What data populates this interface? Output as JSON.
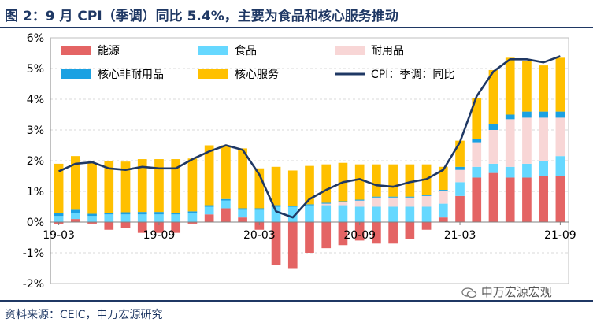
{
  "header": {
    "title": "图 2：9 月 CPI（季调）同比 5.4%，主要为食品和核心服务推动"
  },
  "footer": {
    "source": "资料来源：CEIC，申万宏源研究",
    "watermark": "申万宏源宏观"
  },
  "chart_data": {
    "type": "bar",
    "stacked": true,
    "title": "图 2：9 月 CPI（季调）同比 5.4%，主要为食品和核心服务推动",
    "ylim": [
      -2,
      6
    ],
    "yticks": [
      "-2%",
      "-1%",
      "0%",
      "1%",
      "2%",
      "3%",
      "4%",
      "5%",
      "6%"
    ],
    "ytick_values": [
      -2,
      -1,
      0,
      1,
      2,
      3,
      4,
      5,
      6
    ],
    "xtick_labels": [
      {
        "label": "19-03",
        "index": 0
      },
      {
        "label": "19-09",
        "index": 6
      },
      {
        "label": "20-03",
        "index": 12
      },
      {
        "label": "20-09",
        "index": 18
      },
      {
        "label": "21-03",
        "index": 24
      },
      {
        "label": "21-09",
        "index": 30
      }
    ],
    "categories": [
      "19-03",
      "19-04",
      "19-05",
      "19-06",
      "19-07",
      "19-08",
      "19-09",
      "19-10",
      "19-11",
      "19-12",
      "20-01",
      "20-02",
      "20-03",
      "20-04",
      "20-05",
      "20-06",
      "20-07",
      "20-08",
      "20-09",
      "20-10",
      "20-11",
      "20-12",
      "21-01",
      "21-02",
      "21-03",
      "21-04",
      "21-05",
      "21-06",
      "21-07",
      "21-08",
      "21-09"
    ],
    "series": [
      {
        "name": "能源",
        "color": "#e46464",
        "values": [
          -0.05,
          0.1,
          -0.05,
          -0.25,
          -0.2,
          -0.35,
          -0.35,
          -0.35,
          -0.05,
          0.25,
          0.45,
          0.15,
          -0.25,
          -1.4,
          -1.5,
          -1.0,
          -0.85,
          -0.75,
          -0.6,
          -0.7,
          -0.7,
          -0.55,
          -0.25,
          0.15,
          0.85,
          1.45,
          1.6,
          1.45,
          1.45,
          1.5,
          1.5
        ]
      },
      {
        "name": "食品",
        "color": "#66d8ff",
        "values": [
          0.2,
          0.2,
          0.2,
          0.25,
          0.25,
          0.25,
          0.25,
          0.25,
          0.3,
          0.25,
          0.25,
          0.25,
          0.4,
          0.5,
          0.5,
          0.55,
          0.55,
          0.55,
          0.5,
          0.5,
          0.5,
          0.5,
          0.5,
          0.45,
          0.45,
          0.35,
          0.3,
          0.35,
          0.45,
          0.5,
          0.65
        ]
      },
      {
        "name": "耐用品",
        "color": "#f8d6d6",
        "values": [
          0,
          0,
          0,
          0,
          0,
          0,
          0,
          0,
          0,
          0,
          0,
          0,
          0,
          0,
          0,
          0,
          0.05,
          0.1,
          0.2,
          0.3,
          0.3,
          0.3,
          0.35,
          0.4,
          0.4,
          0.8,
          1.1,
          1.55,
          1.5,
          1.4,
          1.25
        ]
      },
      {
        "name": "核心非耐用品",
        "color": "#1ba1e2",
        "values": [
          0.1,
          0.1,
          0.07,
          0.05,
          0.07,
          0.08,
          0.08,
          0.05,
          0.05,
          0.05,
          0.05,
          0.05,
          0.05,
          0.05,
          0.03,
          0.03,
          0.03,
          0.03,
          0.03,
          0.03,
          0.03,
          0.03,
          0.03,
          0.05,
          0.1,
          0.1,
          0.2,
          0.15,
          0.2,
          0.2,
          0.2
        ]
      },
      {
        "name": "核心服务",
        "color": "#ffc000",
        "values": [
          1.6,
          1.75,
          1.65,
          1.7,
          1.65,
          1.72,
          1.72,
          1.75,
          1.72,
          1.95,
          1.75,
          1.95,
          1.3,
          1.25,
          1.15,
          1.25,
          1.25,
          1.25,
          1.15,
          1.05,
          1.05,
          1.05,
          1.0,
          0.75,
          0.85,
          1.35,
          1.75,
          1.85,
          1.65,
          1.5,
          1.75
        ]
      }
    ],
    "line": {
      "name": "CPI：季调：同比",
      "color": "#1f3864",
      "values": [
        1.65,
        1.9,
        1.95,
        1.75,
        1.7,
        1.8,
        1.75,
        1.75,
        2.05,
        2.3,
        2.5,
        2.35,
        1.55,
        0.35,
        0.15,
        0.75,
        1.05,
        1.3,
        1.4,
        1.2,
        1.15,
        1.3,
        1.4,
        1.7,
        2.6,
        4.1,
        4.9,
        5.3,
        5.3,
        5.2,
        5.4
      ]
    },
    "legend": {
      "position": "top-left",
      "columns": 3
    }
  }
}
